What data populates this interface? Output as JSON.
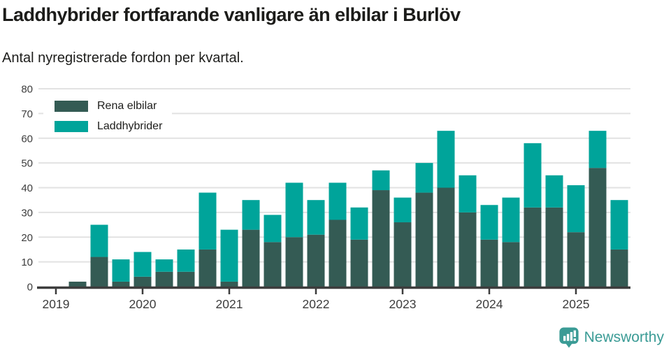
{
  "header": {
    "title": "Laddhybrider fortfarande vanligare än elbilar i Burlöv",
    "subtitle": "Antal nyregistrerade fordon per kvartal."
  },
  "legend": [
    {
      "label": "Rena elbilar",
      "color": "#345B54"
    },
    {
      "label": "Laddhybrider",
      "color": "#00A49A"
    }
  ],
  "chart_data": {
    "type": "bar",
    "stacked": true,
    "title": "Laddhybrider fortfarande vanligare än elbilar i Burlöv",
    "subtitle": "Antal nyregistrerade fordon per kvartal.",
    "xlabel": "",
    "ylabel": "",
    "ylim": [
      0,
      80
    ],
    "y_ticks": [
      0,
      10,
      20,
      30,
      40,
      50,
      60,
      70,
      80
    ],
    "grid": "horizontal",
    "legend_position": "top-left",
    "x_tick_labels": [
      "2019",
      "2020",
      "2021",
      "2022",
      "2023",
      "2024",
      "2025"
    ],
    "categories": [
      "2019 Q1",
      "2019 Q2",
      "2019 Q3",
      "2019 Q4",
      "2020 Q1",
      "2020 Q2",
      "2020 Q3",
      "2020 Q4",
      "2021 Q1",
      "2021 Q2",
      "2021 Q3",
      "2021 Q4",
      "2022 Q1",
      "2022 Q2",
      "2022 Q3",
      "2022 Q4",
      "2023 Q1",
      "2023 Q2",
      "2023 Q3",
      "2023 Q4",
      "2024 Q1",
      "2024 Q2",
      "2024 Q3",
      "2024 Q4",
      "2025 Q1",
      "2025 Q2",
      "2025 Q3"
    ],
    "series": [
      {
        "name": "Rena elbilar",
        "color": "#345B54",
        "values": [
          0,
          2,
          12,
          2,
          4,
          6,
          6,
          15,
          2,
          23,
          18,
          20,
          21,
          27,
          19,
          39,
          26,
          38,
          40,
          30,
          19,
          18,
          32,
          32,
          22,
          48,
          15
        ]
      },
      {
        "name": "Laddhybrider",
        "color": "#00A49A",
        "values": [
          0,
          0,
          13,
          9,
          10,
          5,
          9,
          23,
          21,
          12,
          11,
          22,
          14,
          15,
          13,
          8,
          10,
          12,
          23,
          15,
          14,
          18,
          26,
          13,
          19,
          15,
          20
        ]
      }
    ],
    "stack_totals": [
      0,
      2,
      25,
      11,
      14,
      11,
      15,
      38,
      23,
      35,
      29,
      42,
      35,
      42,
      32,
      47,
      36,
      50,
      63,
      45,
      33,
      36,
      58,
      45,
      41,
      63,
      35
    ]
  },
  "style": {
    "gridline_color": "#e2e2e2",
    "axis_color": "#3d3d3d",
    "tick_label_color": "#3d3d3d",
    "text_color": "#1d1d1b",
    "brand_color": "#3a9b95"
  },
  "footer": {
    "brand": "Newsworthy",
    "logo_icon": "newsworthy-bubble-barchart-icon"
  }
}
